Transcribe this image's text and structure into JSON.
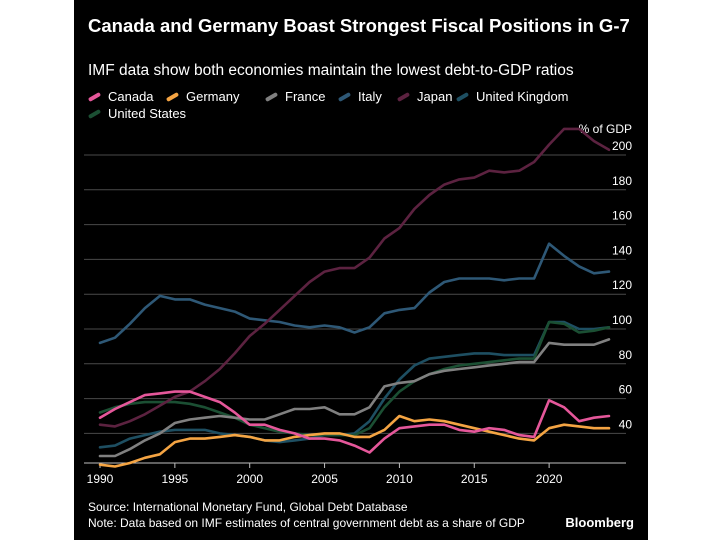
{
  "header": {
    "title": "Canada and Germany Boast Strongest Fiscal Positions in G-7",
    "subtitle": "IMF data show both economies maintain the lowest debt-to-GDP ratios"
  },
  "footer": {
    "source": "Source: International Monetary Fund, Global Debt Database",
    "note": "Note: Data based on IMF estimates of central government debt as a share of GDP",
    "brand": "Bloomberg"
  },
  "chart_data": {
    "type": "line",
    "title": "Canada and Germany Boast Strongest Fiscal Positions in G-7",
    "subtitle": "IMF data show both economies maintain the lowest debt-to-GDP ratios",
    "ylabel": "% of GDP",
    "xlabel": "",
    "xlim": [
      1990,
      2024
    ],
    "ylim": [
      20,
      200
    ],
    "x_ticks": [
      1990,
      1995,
      2000,
      2005,
      2010,
      2015,
      2020
    ],
    "y_ticks": [
      40,
      60,
      80,
      100,
      120,
      140,
      160,
      180,
      200
    ],
    "y_axis_position": "right",
    "grid": "horizontal",
    "x": [
      1990,
      1991,
      1992,
      1993,
      1994,
      1995,
      1996,
      1997,
      1998,
      1999,
      2000,
      2001,
      2002,
      2003,
      2004,
      2005,
      2006,
      2007,
      2008,
      2009,
      2010,
      2011,
      2012,
      2013,
      2014,
      2015,
      2016,
      2017,
      2018,
      2019,
      2020,
      2021,
      2022,
      2023,
      2024
    ],
    "series": [
      {
        "name": "Canada",
        "color": "#e5579a",
        "values": [
          49,
          54,
          58,
          62,
          63,
          64,
          64,
          61,
          58,
          52,
          45,
          45,
          42,
          40,
          37,
          37,
          36,
          33,
          29,
          37,
          43,
          44,
          45,
          45,
          42,
          41,
          43,
          42,
          39,
          38,
          59,
          55,
          47,
          49,
          50
        ]
      },
      {
        "name": "Germany",
        "color": "#f4a443",
        "values": [
          22,
          21,
          23,
          26,
          28,
          35,
          37,
          37,
          38,
          39,
          38,
          36,
          36,
          38,
          39,
          40,
          40,
          38,
          38,
          42,
          50,
          47,
          48,
          47,
          45,
          43,
          41,
          39,
          37,
          36,
          43,
          45,
          44,
          43,
          43
        ]
      },
      {
        "name": "France",
        "color": "#808080",
        "values": [
          27,
          27,
          31,
          36,
          40,
          46,
          48,
          49,
          50,
          49,
          48,
          48,
          51,
          54,
          54,
          55,
          51,
          51,
          55,
          67,
          69,
          70,
          74,
          76,
          77,
          78,
          79,
          80,
          81,
          81,
          92,
          91,
          91,
          91,
          94
        ]
      },
      {
        "name": "Italy",
        "color": "#2e5876",
        "values": [
          92,
          95,
          103,
          112,
          119,
          117,
          117,
          114,
          112,
          110,
          106,
          105,
          104,
          102,
          101,
          102,
          101,
          98,
          101,
          109,
          111,
          112,
          121,
          127,
          129,
          129,
          129,
          128,
          129,
          129,
          149,
          142,
          136,
          132,
          133
        ]
      },
      {
        "name": "Japan",
        "color": "#5c2240",
        "values": [
          45,
          44,
          47,
          51,
          56,
          61,
          64,
          70,
          77,
          86,
          96,
          103,
          111,
          119,
          127,
          133,
          135,
          135,
          141,
          152,
          158,
          169,
          177,
          183,
          186,
          187,
          191,
          190,
          191,
          196,
          206,
          215,
          215,
          208,
          203
        ]
      },
      {
        "name": "United Kingdom",
        "color": "#1e4f62",
        "values": [
          32,
          33,
          37,
          39,
          41,
          42,
          42,
          42,
          40,
          39,
          38,
          36,
          35,
          36,
          37,
          39,
          39,
          40,
          47,
          60,
          71,
          79,
          83,
          84,
          85,
          86,
          86,
          85,
          85,
          85,
          104,
          104,
          100,
          100,
          101
        ]
      },
      {
        "name": "United States",
        "color": "#1b4f33",
        "values": [
          52,
          55,
          57,
          58,
          58,
          58,
          57,
          55,
          52,
          49,
          45,
          43,
          41,
          40,
          39,
          39,
          39,
          39,
          43,
          55,
          64,
          70,
          74,
          77,
          79,
          80,
          81,
          82,
          83,
          83,
          104,
          103,
          98,
          99,
          101
        ]
      }
    ]
  }
}
